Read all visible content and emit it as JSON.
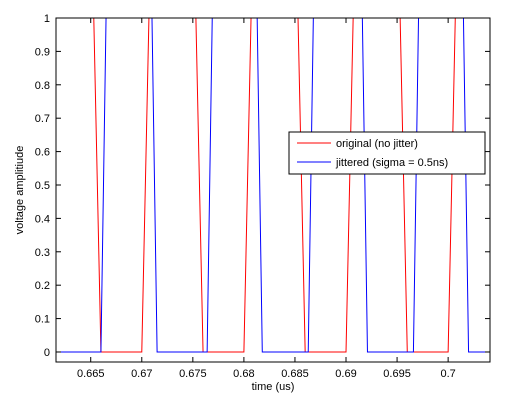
{
  "chart_data": {
    "type": "line",
    "xlabel": "time (us)",
    "ylabel": "voltage amplitiude",
    "xlim": [
      0.6616,
      0.7041
    ],
    "ylim": [
      -0.03,
      1.0
    ],
    "xticks": [
      0.665,
      0.67,
      0.675,
      0.68,
      0.685,
      0.69,
      0.695,
      0.7
    ],
    "xtick_labels": [
      "0.665",
      "0.67",
      "0.675",
      "0.68",
      "0.685",
      "0.69",
      "0.695",
      "0.7"
    ],
    "yticks": [
      0,
      0.1,
      0.2,
      0.3,
      0.4,
      0.5,
      0.6,
      0.7,
      0.8,
      0.9,
      1
    ],
    "ytick_labels": [
      "0",
      "0.1",
      "0.2",
      "0.3",
      "0.4",
      "0.5",
      "0.6",
      "0.7",
      "0.8",
      "0.9",
      "1"
    ],
    "grid": false,
    "legend_position": "right",
    "series": [
      {
        "name": "original (no jitter)",
        "color": "#ff0000",
        "x": [
          0.6616,
          0.6653,
          0.666,
          0.67,
          0.6707,
          0.6753,
          0.676,
          0.68,
          0.6807,
          0.6853,
          0.686,
          0.69,
          0.6907,
          0.6953,
          0.696,
          0.7,
          0.7007,
          0.7041
        ],
        "y": [
          1,
          1,
          0,
          0,
          1,
          1,
          0,
          0,
          1,
          1,
          0,
          0,
          1,
          1,
          0,
          0,
          1,
          1
        ]
      },
      {
        "name": "jittered (sigma = 0.5ns)",
        "color": "#0000ff",
        "x": [
          0.6616,
          0.666,
          0.6665,
          0.671,
          0.6715,
          0.6764,
          0.6769,
          0.6813,
          0.6818,
          0.6863,
          0.6868,
          0.6916,
          0.6921,
          0.6966,
          0.6971,
          0.7015,
          0.702,
          0.7041
        ],
        "y": [
          0,
          0,
          1,
          1,
          0,
          0,
          1,
          1,
          0,
          0,
          1,
          1,
          0,
          0,
          1,
          1,
          0,
          0
        ]
      }
    ]
  }
}
